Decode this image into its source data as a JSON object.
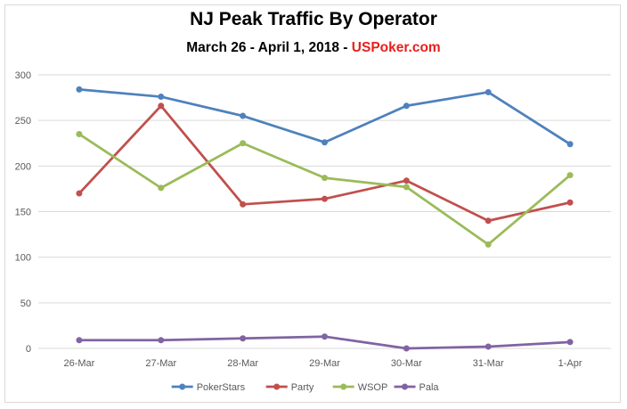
{
  "header": {
    "title": "NJ Peak Traffic By Operator",
    "subtitle_prefix": "March 26 - April 1, 2018 - ",
    "subtitle_brand": "USPoker.com"
  },
  "colors": {
    "PokerStars": "#4f81bd",
    "Party": "#c0504d",
    "WSOP": "#9bbb59",
    "Pala": "#8064a2",
    "brand": "#e8201c"
  },
  "chart_data": {
    "type": "line",
    "title": "NJ Peak Traffic By Operator",
    "subtitle": "March 26 - April 1, 2018 - USPoker.com",
    "categories": [
      "26-Mar",
      "27-Mar",
      "28-Mar",
      "29-Mar",
      "30-Mar",
      "31-Mar",
      "1-Apr"
    ],
    "y_ticks": [
      0,
      50,
      100,
      150,
      200,
      250,
      300
    ],
    "ylim": [
      0,
      300
    ],
    "grid": true,
    "legend_position": "bottom",
    "series": [
      {
        "name": "PokerStars",
        "values": [
          284,
          276,
          255,
          226,
          266,
          281,
          224
        ]
      },
      {
        "name": "Party",
        "values": [
          170,
          266,
          158,
          164,
          184,
          140,
          160
        ]
      },
      {
        "name": "WSOP",
        "values": [
          235,
          176,
          225,
          187,
          177,
          114,
          190
        ]
      },
      {
        "name": "Pala",
        "values": [
          9,
          9,
          11,
          13,
          0,
          2,
          7
        ]
      }
    ]
  }
}
